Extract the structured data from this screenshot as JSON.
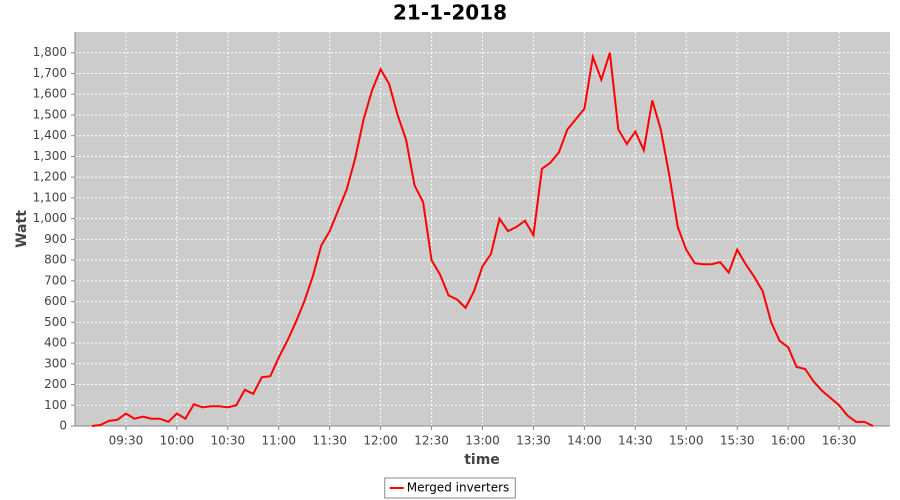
{
  "chart_data": {
    "type": "line",
    "title": "21-1-2018",
    "x_label": "time",
    "y_label": "Watt",
    "x": [
      "09:10",
      "09:15",
      "09:20",
      "09:25",
      "09:30",
      "09:35",
      "09:40",
      "09:45",
      "09:50",
      "09:55",
      "10:00",
      "10:05",
      "10:10",
      "10:15",
      "10:20",
      "10:25",
      "10:30",
      "10:35",
      "10:40",
      "10:45",
      "10:50",
      "10:55",
      "11:00",
      "11:05",
      "11:10",
      "11:15",
      "11:20",
      "11:25",
      "11:30",
      "11:35",
      "11:40",
      "11:45",
      "11:50",
      "11:55",
      "12:00",
      "12:05",
      "12:10",
      "12:15",
      "12:20",
      "12:25",
      "12:30",
      "12:35",
      "12:40",
      "12:45",
      "12:50",
      "12:55",
      "13:00",
      "13:05",
      "13:10",
      "13:15",
      "13:20",
      "13:25",
      "13:30",
      "13:35",
      "13:40",
      "13:45",
      "13:50",
      "13:55",
      "14:00",
      "14:05",
      "14:10",
      "14:15",
      "14:20",
      "14:25",
      "14:30",
      "14:35",
      "14:40",
      "14:45",
      "14:50",
      "14:55",
      "15:00",
      "15:05",
      "15:10",
      "15:15",
      "15:20",
      "15:25",
      "15:30",
      "15:35",
      "15:40",
      "15:45",
      "15:50",
      "15:55",
      "16:00",
      "16:05",
      "16:10",
      "16:15",
      "16:20",
      "16:25",
      "16:30",
      "16:35",
      "16:40",
      "16:45",
      "16:50"
    ],
    "series": [
      {
        "name": "Merged inverters",
        "color": "#ff0000",
        "values": [
          0,
          5,
          25,
          30,
          60,
          35,
          45,
          35,
          35,
          20,
          60,
          35,
          105,
          90,
          95,
          95,
          90,
          100,
          175,
          155,
          235,
          240,
          330,
          410,
          500,
          600,
          720,
          870,
          940,
          1040,
          1140,
          1290,
          1480,
          1620,
          1720,
          1650,
          1500,
          1380,
          1160,
          1080,
          800,
          730,
          630,
          610,
          570,
          650,
          770,
          830,
          1000,
          940,
          960,
          990,
          920,
          1240,
          1270,
          1320,
          1430,
          1480,
          1530,
          1780,
          1670,
          1800,
          1430,
          1360,
          1420,
          1330,
          1570,
          1430,
          1210,
          960,
          850,
          785,
          780,
          780,
          790,
          740,
          850,
          780,
          720,
          650,
          500,
          410,
          380,
          285,
          275,
          215,
          170,
          135,
          100,
          50,
          20,
          20,
          0
        ]
      }
    ],
    "xlim": [
      "09:00",
      "17:00"
    ],
    "xticks": [
      "09:30",
      "10:00",
      "10:30",
      "11:00",
      "11:30",
      "12:00",
      "12:30",
      "13:00",
      "13:30",
      "14:00",
      "14:30",
      "15:00",
      "15:30",
      "16:00",
      "16:30"
    ],
    "ylim": [
      0,
      1900
    ],
    "yticks": [
      0,
      100,
      200,
      300,
      400,
      500,
      600,
      700,
      800,
      900,
      {
        "value": 1000,
        "label": "1,000"
      },
      {
        "value": 1100,
        "label": "1,100"
      },
      {
        "value": 1200,
        "label": "1,200"
      },
      {
        "value": 1300,
        "label": "1,300"
      },
      {
        "value": 1400,
        "label": "1,400"
      },
      {
        "value": 1500,
        "label": "1,500"
      },
      {
        "value": 1600,
        "label": "1,600"
      },
      {
        "value": 1700,
        "label": "1,700"
      },
      {
        "value": 1800,
        "label": "1,800"
      }
    ],
    "grid": true,
    "legend": "bottom"
  }
}
